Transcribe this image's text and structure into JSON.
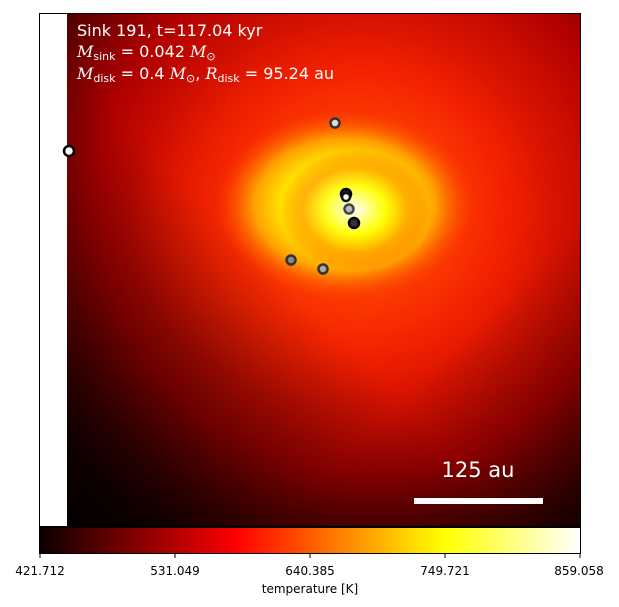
{
  "header": {
    "title_line": "Sink 191, t=117.04 kyr",
    "msink": {
      "symbol": "M",
      "sub": "sink",
      "value": "= 0.042",
      "unit": "M",
      "unit_sub": "⊙"
    },
    "mdisk": {
      "symbol": "M",
      "sub": "disk",
      "value": "= 0.4",
      "unit": "M",
      "unit_sub": "⊙"
    },
    "rdisk": {
      "symbol": "R",
      "sub": "disk",
      "value": "= 95.24",
      "unit": "au"
    }
  },
  "scale_bar": {
    "label": "125 au",
    "color": "#ffffff"
  },
  "colorbar": {
    "label": "temperature [K]",
    "ticks": [
      "421.712",
      "531.049",
      "640.385",
      "749.721",
      "859.058"
    ],
    "min": 421.712,
    "max": 859.058,
    "colormap": "hot"
  },
  "sinks": [
    {
      "id": "s1",
      "ring": "#ffffff"
    },
    {
      "id": "s2",
      "ring": "#c8c8c8"
    },
    {
      "id": "s3",
      "ring": "#2a2a2a"
    },
    {
      "id": "s4",
      "ring": "#555555"
    },
    {
      "id": "s5",
      "ring": "#9a9a9a"
    },
    {
      "id": "s6",
      "ring": "#1a1a1a"
    },
    {
      "id": "s7",
      "ring": "#7a7a7a"
    },
    {
      "id": "s8",
      "ring": "#b0b0b0"
    }
  ]
}
